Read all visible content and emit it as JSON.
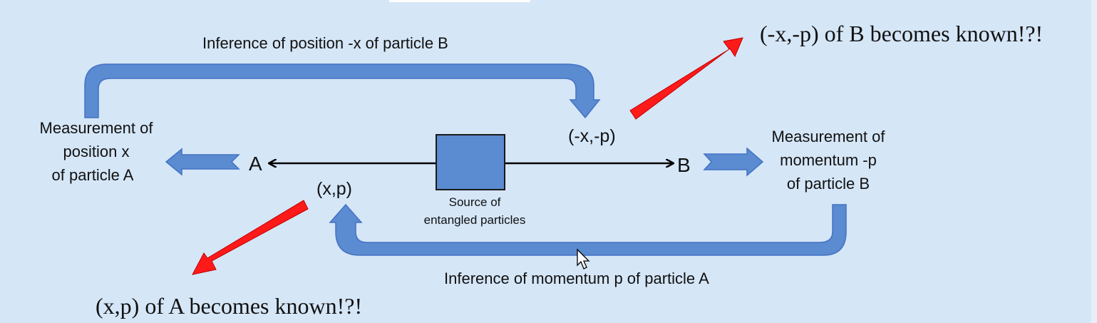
{
  "labels": {
    "inference_x": "Inference of position -x of particle B",
    "inference_p": "Inference of momentum p of particle A",
    "measurement_a": [
      "Measurement of",
      "position x",
      "of particle A"
    ],
    "measurement_b": [
      "Measurement of",
      "momentum -p",
      "of particle B"
    ],
    "particle_a": "A",
    "particle_b": "B",
    "state_b": "(-x,-p)",
    "state_a": "(x,p)",
    "source": [
      "Source of",
      "entangled particles"
    ],
    "known_b": "(-x,-p) of B becomes known!?!",
    "known_a": "(x,p) of A becomes known!?!"
  },
  "colors": {
    "background": "#d5e6f7",
    "blue_arrow": "#5b8bd0",
    "blue_arrow_stroke": "#4472c4",
    "red_arrow": "#ff1a1a",
    "source_box": "#5b8bd0"
  }
}
